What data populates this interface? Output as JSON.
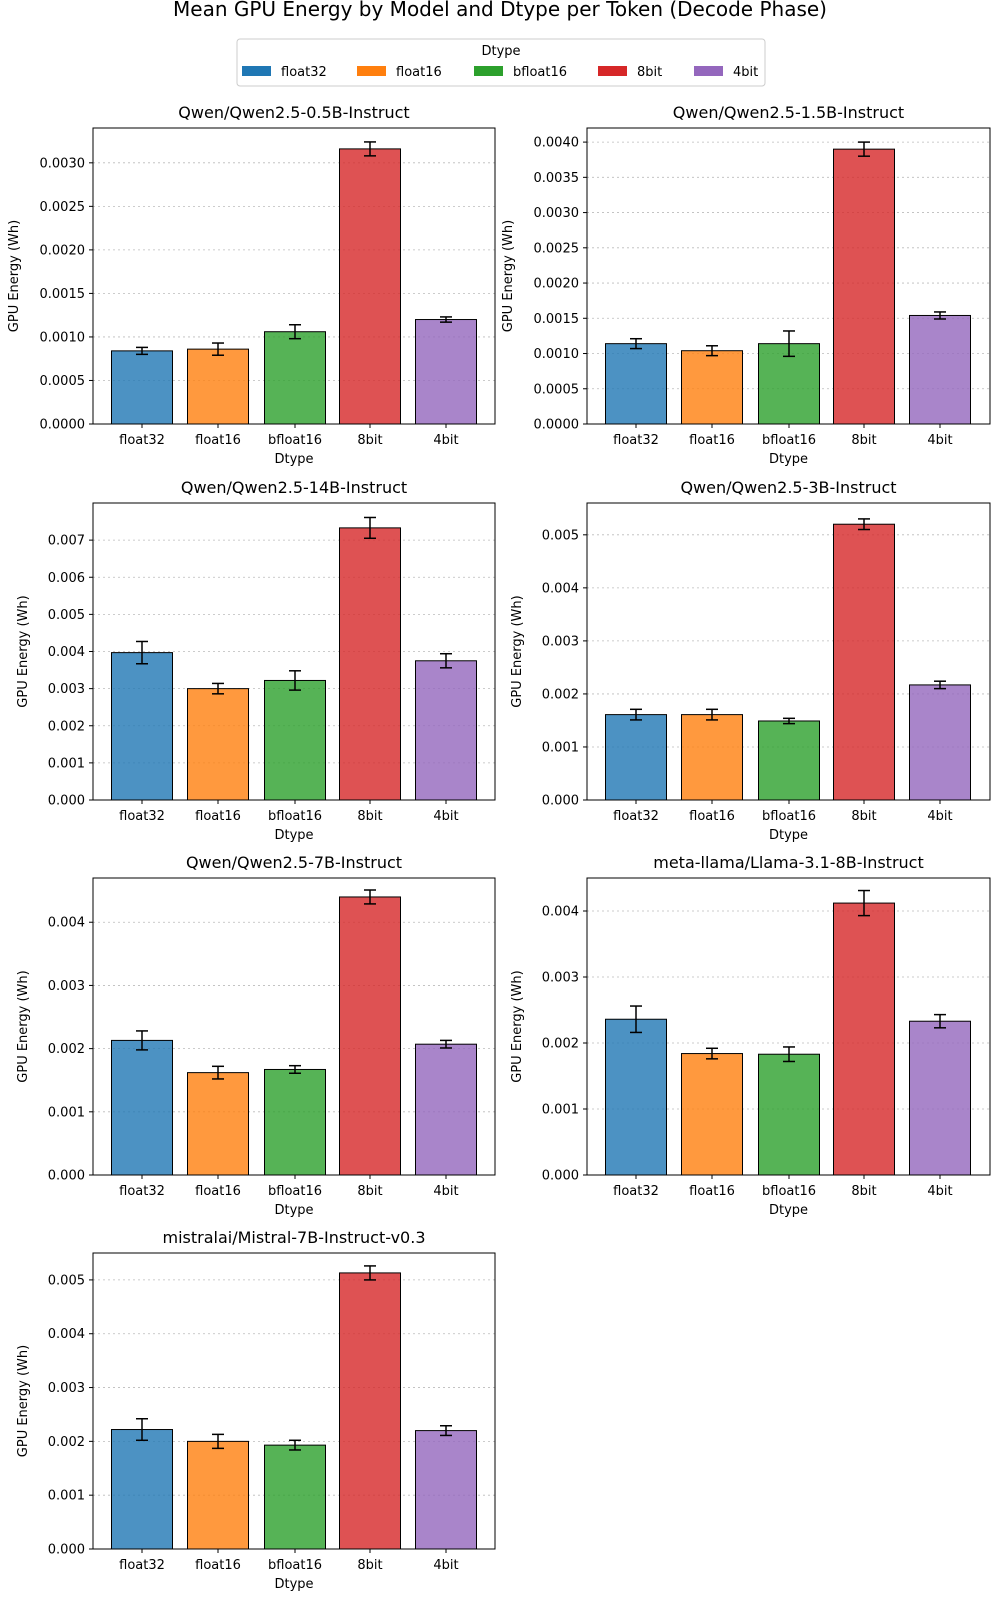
{
  "chart_data": {
    "type": "bar",
    "title": "Mean GPU Energy by Model and Dtype per Token (Decode Phase)",
    "legend": {
      "title": "Dtype",
      "placement": "top-center",
      "entries": [
        "float32",
        "float16",
        "bfloat16",
        "8bit",
        "4bit"
      ]
    },
    "colors": {
      "float32": "#1f77b4",
      "float16": "#ff7f0e",
      "bfloat16": "#2ca02c",
      "8bit": "#d62728",
      "4bit": "#9467bd"
    },
    "categories": [
      "float32",
      "float16",
      "bfloat16",
      "8bit",
      "4bit"
    ],
    "xlabel": "Dtype",
    "ylabel": "GPU Energy (Wh)",
    "subplots": [
      {
        "title": "Qwen/Qwen2.5-0.5B-Instruct",
        "ylim": [
          0,
          0.0034
        ],
        "yticks": [
          "0.0000",
          "0.0005",
          "0.0010",
          "0.0015",
          "0.0020",
          "0.0025",
          "0.0030"
        ],
        "values": [
          0.00084,
          0.00086,
          0.00106,
          0.00316,
          0.0012
        ],
        "errors": [
          4e-05,
          7e-05,
          8e-05,
          8e-05,
          3e-05
        ],
        "show_xlabel": true
      },
      {
        "title": "Qwen/Qwen2.5-1.5B-Instruct",
        "ylim": [
          0,
          0.0042
        ],
        "yticks": [
          "0.0000",
          "0.0005",
          "0.0010",
          "0.0015",
          "0.0020",
          "0.0025",
          "0.0030",
          "0.0035",
          "0.0040"
        ],
        "values": [
          0.00114,
          0.00104,
          0.00114,
          0.0039,
          0.00154
        ],
        "errors": [
          7e-05,
          7e-05,
          0.00018,
          0.0001,
          5e-05
        ],
        "show_xlabel": true
      },
      {
        "title": "Qwen/Qwen2.5-14B-Instruct",
        "ylim": [
          0,
          0.008
        ],
        "yticks": [
          "0.000",
          "0.001",
          "0.002",
          "0.003",
          "0.004",
          "0.005",
          "0.006",
          "0.007"
        ],
        "values": [
          0.00397,
          0.003,
          0.00322,
          0.00733,
          0.00375
        ],
        "errors": [
          0.0003,
          0.00014,
          0.00026,
          0.00028,
          0.00019
        ],
        "show_xlabel": true
      },
      {
        "title": "Qwen/Qwen2.5-3B-Instruct",
        "ylim": [
          0,
          0.0056
        ],
        "yticks": [
          "0.000",
          "0.001",
          "0.002",
          "0.003",
          "0.004",
          "0.005"
        ],
        "values": [
          0.00161,
          0.00161,
          0.00149,
          0.0052,
          0.00217
        ],
        "errors": [
          0.0001,
          0.0001,
          5e-05,
          0.0001,
          7e-05
        ],
        "show_xlabel": true
      },
      {
        "title": "Qwen/Qwen2.5-7B-Instruct",
        "ylim": [
          0,
          0.0047
        ],
        "yticks": [
          "0.000",
          "0.001",
          "0.002",
          "0.003",
          "0.004"
        ],
        "values": [
          0.00213,
          0.00162,
          0.00167,
          0.0044,
          0.00207
        ],
        "errors": [
          0.00015,
          0.0001,
          6e-05,
          0.00011,
          6e-05
        ],
        "show_xlabel": true
      },
      {
        "title": "meta-llama/Llama-3.1-8B-Instruct",
        "ylim": [
          0,
          0.0045
        ],
        "yticks": [
          "0.000",
          "0.001",
          "0.002",
          "0.003",
          "0.004"
        ],
        "values": [
          0.00236,
          0.00184,
          0.00183,
          0.00412,
          0.00233
        ],
        "errors": [
          0.0002,
          8e-05,
          0.00011,
          0.00019,
          0.0001
        ],
        "show_xlabel": true
      },
      {
        "title": "mistralai/Mistral-7B-Instruct-v0.3",
        "ylim": [
          0,
          0.0055
        ],
        "yticks": [
          "0.000",
          "0.001",
          "0.002",
          "0.003",
          "0.004",
          "0.005"
        ],
        "values": [
          0.00222,
          0.002,
          0.00193,
          0.00513,
          0.0022
        ],
        "errors": [
          0.0002,
          0.00013,
          9e-05,
          0.00013,
          9e-05
        ],
        "show_xlabel": true
      }
    ]
  }
}
